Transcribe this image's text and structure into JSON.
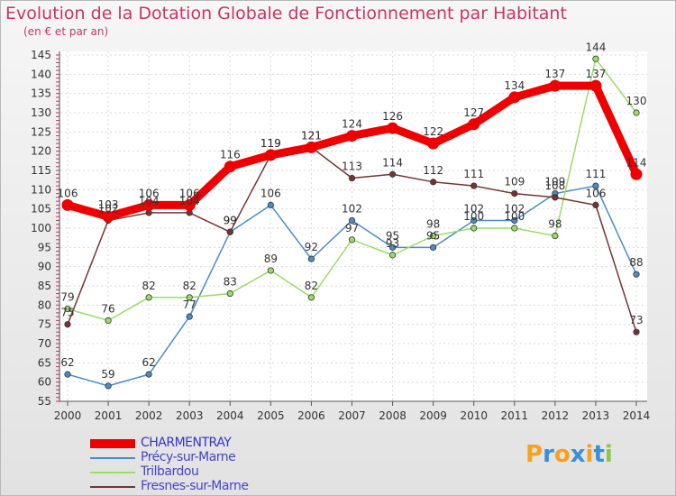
{
  "header": {
    "title": "Evolution de la Dotation Globale de Fonctionnement par Habitant",
    "subtitle": "(en € et par an)"
  },
  "brand": {
    "letters": [
      "P",
      "r",
      "o",
      "x",
      "i",
      "t",
      "i"
    ],
    "colors": [
      "#f4a21f",
      "#3a8fd8",
      "#f4a21f",
      "#3a8fd8",
      "#f4a21f",
      "#3a8fd8",
      "#8dc63f"
    ]
  },
  "chart_data": {
    "type": "line",
    "title": "Evolution de la Dotation Globale de Fonctionnement par Habitant",
    "subtitle": "(en € et par an)",
    "xlabel": "",
    "ylabel": "",
    "ylim": [
      55,
      145
    ],
    "yticks": [
      55,
      60,
      65,
      70,
      75,
      80,
      85,
      90,
      95,
      100,
      105,
      110,
      115,
      120,
      125,
      130,
      135,
      140,
      145
    ],
    "x": [
      "2000",
      "2001",
      "2002",
      "2003",
      "2004",
      "2005",
      "2006",
      "2007",
      "2008",
      "2009",
      "2010",
      "2011",
      "2012",
      "2013",
      "2014"
    ],
    "grid": true,
    "legend_position": "bottom-left",
    "series": [
      {
        "name": "CHARMENTRAY",
        "color": "#ee0000",
        "values": [
          106,
          103,
          106,
          106,
          116,
          119,
          121,
          124,
          126,
          122,
          127,
          134,
          137,
          137,
          114
        ]
      },
      {
        "name": "Précy-sur-Marne",
        "color": "#4a8cc8",
        "values": [
          62,
          59,
          62,
          77,
          99,
          106,
          92,
          102,
          95,
          95,
          102,
          102,
          109,
          111,
          88
        ]
      },
      {
        "name": "Trilbardou",
        "color": "#99dd66",
        "values": [
          79,
          76,
          82,
          82,
          83,
          89,
          82,
          97,
          93,
          98,
          100,
          100,
          98,
          144,
          130
        ]
      },
      {
        "name": "Fresnes-sur-Marne",
        "color": "#773333",
        "values": [
          75,
          102,
          104,
          104,
          99,
          119,
          121,
          113,
          114,
          112,
          111,
          109,
          108,
          106,
          73
        ]
      }
    ]
  }
}
